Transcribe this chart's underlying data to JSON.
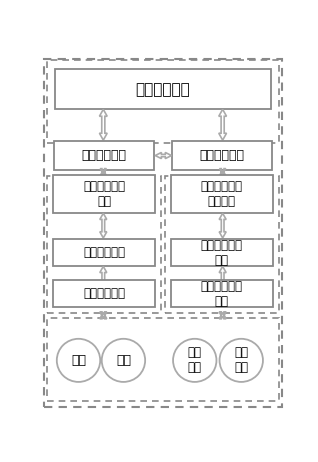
{
  "bg_color": "#ffffff",
  "box_border": "#888888",
  "dash_color": "#888888",
  "arrow_color": "#aaaaaa",
  "text_color": "#000000",
  "font_size": 9,
  "title": "终端显示模块",
  "box1_left": "教学管理模块",
  "box1_right": "教学互动模块",
  "box2_left_1": "数据传输管理\n模块",
  "box2_left_2": "数据存储模块",
  "box2_left_3": "数据采集模块",
  "box2_right_1": "虚拟教学活动\n构建模块",
  "box2_right_2": "虚拟化身表示\n模块",
  "box2_right_3": "空间定位追踪\n模块",
  "circle1": "教师",
  "circle2": "学生",
  "circle3": "教学\n资源",
  "circle4": "教学\n空间"
}
